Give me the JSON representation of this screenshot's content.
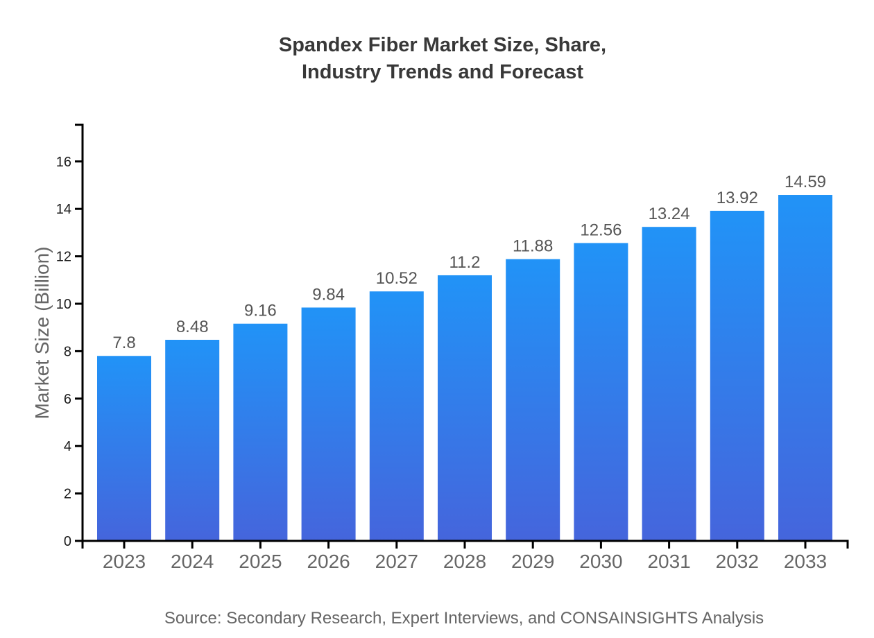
{
  "title": {
    "line1": "Spandex Fiber Market Size, Share,",
    "line2": "Industry Trends and Forecast"
  },
  "source": {
    "text": "Source: Secondary Research, Expert Interviews, and CONSAINSIGHTS Analysis"
  },
  "chart_data": {
    "type": "bar",
    "title": "Spandex Fiber Market Size, Share, Industry Trends and Forecast",
    "categories": [
      "2023",
      "2024",
      "2025",
      "2026",
      "2027",
      "2028",
      "2029",
      "2030",
      "2031",
      "2032",
      "2033"
    ],
    "values": [
      7.8,
      8.48,
      9.16,
      9.84,
      10.52,
      11.2,
      11.88,
      12.56,
      13.24,
      13.92,
      14.59
    ],
    "value_labels": [
      "7.8",
      "8.48",
      "9.16",
      "9.84",
      "10.52",
      "11.2",
      "11.88",
      "12.56",
      "13.24",
      "13.92",
      "14.59"
    ],
    "xlabel": "",
    "ylabel": "Market Size (Billion)",
    "ylim": [
      0,
      17.5
    ],
    "yticks": [
      0,
      2,
      4,
      6,
      8,
      10,
      12,
      14,
      16
    ],
    "grid": false,
    "legend": "none",
    "colors": {
      "bar_gradient_top": "#2193f7",
      "bar_gradient_bottom": "#4565dc",
      "axis": "#000000",
      "y_tick_label": "#1a1a1a",
      "x_tick_label": "#666666",
      "value_label": "#555555",
      "title": "#383838",
      "axis_label": "#666666",
      "source": "#666666"
    }
  }
}
